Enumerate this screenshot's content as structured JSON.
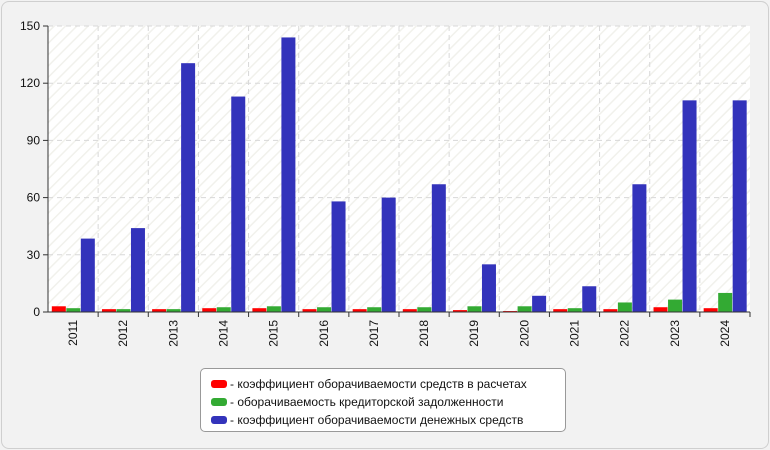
{
  "chart_data": {
    "type": "bar",
    "title": "",
    "xlabel": "",
    "ylabel": "",
    "ylim": [
      0,
      150
    ],
    "yticks": [
      0,
      30,
      60,
      90,
      120,
      150
    ],
    "grid": true,
    "legend_position": "bottom",
    "categories": [
      "2011",
      "2012",
      "2013",
      "2014",
      "2015",
      "2016",
      "2017",
      "2018",
      "2019",
      "2020",
      "2021",
      "2022",
      "2023",
      "2024"
    ],
    "series": [
      {
        "name": "- коэффициент оборачиваемости средств в расчетах",
        "color": "#ff0000",
        "values": [
          3.0,
          1.5,
          1.5,
          2.0,
          2.0,
          1.5,
          1.5,
          1.5,
          1.0,
          0.5,
          1.5,
          1.5,
          2.5,
          2.0
        ]
      },
      {
        "name": "- оборачиваемость кредиторской задолженности",
        "color": "#33aa33",
        "values": [
          2.0,
          1.5,
          1.5,
          2.5,
          3.0,
          2.5,
          2.5,
          2.5,
          3.0,
          3.0,
          2.0,
          5.0,
          6.5,
          10.0
        ]
      },
      {
        "name": "- коэффициент оборачиваемости денежных средств",
        "color": "#3333bb",
        "values": [
          38.5,
          44.0,
          130.5,
          113.0,
          144.0,
          58.0,
          60.0,
          67.0,
          25.0,
          8.5,
          13.5,
          67.0,
          111.0,
          111.0
        ]
      }
    ]
  }
}
